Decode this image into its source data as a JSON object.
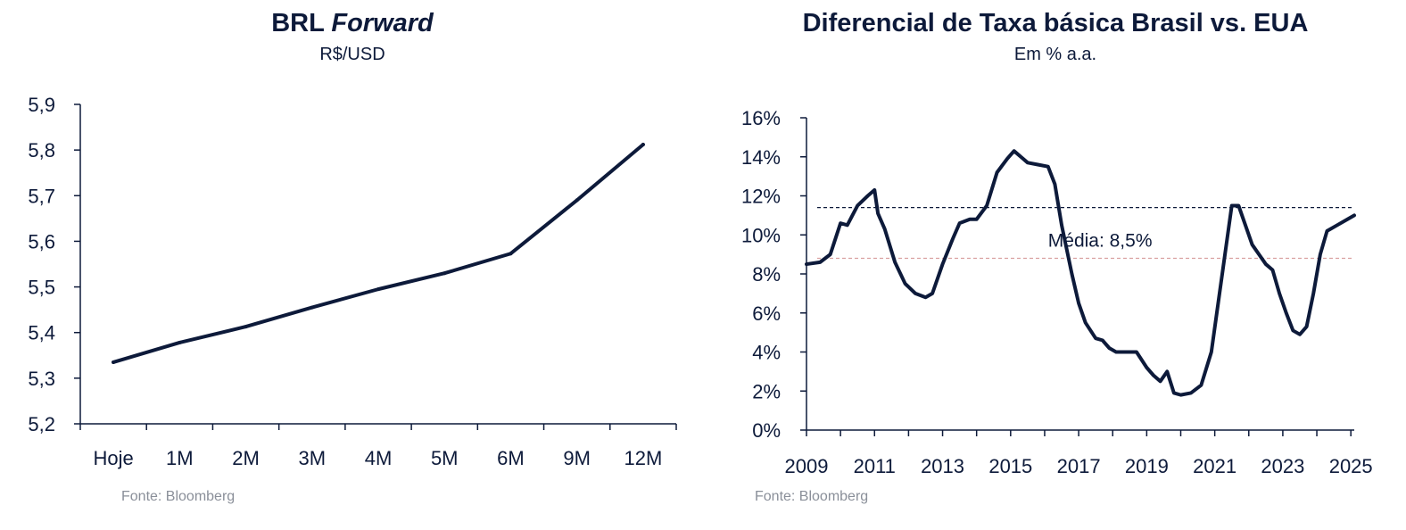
{
  "chart_data": [
    {
      "type": "line",
      "title_main": "BRL",
      "title_italic": "Forward",
      "subtitle": "R$/USD",
      "source": "Fonte: Bloomberg",
      "categories": [
        "Hoje",
        "1M",
        "2M",
        "3M",
        "4M",
        "5M",
        "6M",
        "9M",
        "12M"
      ],
      "values": [
        5.335,
        5.378,
        5.413,
        5.455,
        5.495,
        5.53,
        5.573,
        5.69,
        5.812
      ],
      "ylim": [
        5.2,
        5.9
      ],
      "yticks": [
        "5,2",
        "5,3",
        "5,4",
        "5,5",
        "5,6",
        "5,7",
        "5,8",
        "5,9"
      ],
      "line_color": "#0d1a3a"
    },
    {
      "type": "line",
      "title": "Diferencial de Taxa básica Brasil vs. EUA",
      "subtitle": "Em % a.a.",
      "source": "Fonte: Bloomberg",
      "xlim": [
        2009,
        2025.1
      ],
      "ylim": [
        0,
        16
      ],
      "xticks": [
        "2009",
        "2011",
        "2013",
        "2015",
        "2017",
        "2019",
        "2021",
        "2023",
        "2025"
      ],
      "yticks": [
        "0%",
        "2%",
        "4%",
        "6%",
        "8%",
        "10%",
        "12%",
        "14%",
        "16%"
      ],
      "x": [
        2009.0,
        2009.4,
        2009.7,
        2010.0,
        2010.2,
        2010.5,
        2010.8,
        2011.0,
        2011.1,
        2011.3,
        2011.6,
        2011.9,
        2012.2,
        2012.5,
        2012.7,
        2013.0,
        2013.3,
        2013.5,
        2013.8,
        2014.0,
        2014.3,
        2014.6,
        2014.9,
        2015.1,
        2015.3,
        2015.5,
        2015.8,
        2016.1,
        2016.3,
        2016.5,
        2016.8,
        2017.0,
        2017.2,
        2017.5,
        2017.7,
        2017.9,
        2018.1,
        2018.4,
        2018.7,
        2019.0,
        2019.2,
        2019.4,
        2019.6,
        2019.8,
        2020.0,
        2020.3,
        2020.6,
        2020.9,
        2021.1,
        2021.3,
        2021.5,
        2021.7,
        2021.9,
        2022.1,
        2022.3,
        2022.5,
        2022.7,
        2022.9,
        2023.1,
        2023.3,
        2023.5,
        2023.7,
        2023.9,
        2024.1,
        2024.3,
        2024.6,
        2024.9,
        2025.1
      ],
      "y": [
        8.5,
        8.6,
        9.0,
        10.6,
        10.5,
        11.5,
        12.0,
        12.3,
        11.1,
        10.3,
        8.6,
        7.5,
        7.0,
        6.8,
        7.0,
        8.5,
        9.8,
        10.6,
        10.8,
        10.8,
        11.5,
        13.2,
        13.9,
        14.3,
        14.0,
        13.7,
        13.6,
        13.5,
        12.6,
        10.5,
        8.0,
        6.5,
        5.5,
        4.7,
        4.6,
        4.2,
        4.0,
        4.0,
        4.0,
        3.2,
        2.8,
        2.5,
        3.0,
        1.9,
        1.8,
        1.9,
        2.3,
        4.0,
        6.5,
        9.0,
        11.5,
        11.5,
        10.5,
        9.5,
        9.0,
        8.5,
        8.2,
        7.0,
        6.0,
        5.1,
        4.9,
        5.3,
        7.0,
        9.0,
        10.2,
        10.5,
        10.8,
        11.0
      ],
      "reference_lines": [
        {
          "value": 11.4,
          "style": "dashed",
          "color": "#0d1a3a"
        },
        {
          "value": 8.8,
          "style": "dashed",
          "color": "#d9a0a0"
        }
      ],
      "annotation": "Média: 8,5%",
      "line_color": "#0d1a3a"
    }
  ]
}
